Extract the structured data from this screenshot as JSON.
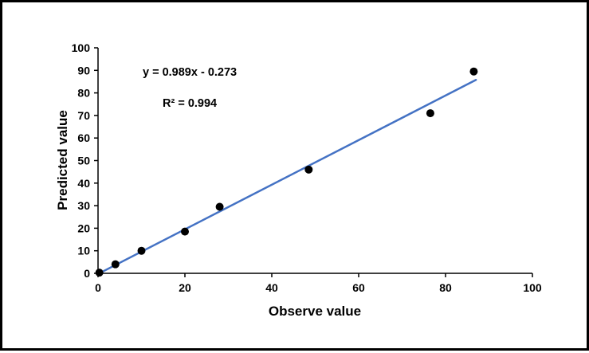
{
  "chart_data": {
    "type": "scatter",
    "xlabel": "Observe value",
    "ylabel": "Predicted value",
    "equation_label": "y = 0.989x - 0.273",
    "r_squared_label": "R² = 0.994",
    "xlim": [
      0,
      100
    ],
    "ylim": [
      0,
      100
    ],
    "x_ticks": [
      0,
      20,
      40,
      60,
      80,
      100
    ],
    "y_ticks": [
      0,
      10,
      20,
      30,
      40,
      50,
      60,
      70,
      80,
      90,
      100
    ],
    "grid": false,
    "legend": "none",
    "point_color": "#000000",
    "points": [
      [
        0.3,
        0.3
      ],
      [
        4,
        4
      ],
      [
        10,
        10
      ],
      [
        20,
        18.5
      ],
      [
        28,
        29.5
      ],
      [
        48.5,
        46
      ],
      [
        76.5,
        71
      ],
      [
        86.5,
        89.5
      ]
    ],
    "trendline": {
      "slope": 0.989,
      "intercept": -0.273,
      "x_start": 0.3,
      "x_end": 87,
      "color": "#4472C4"
    }
  }
}
